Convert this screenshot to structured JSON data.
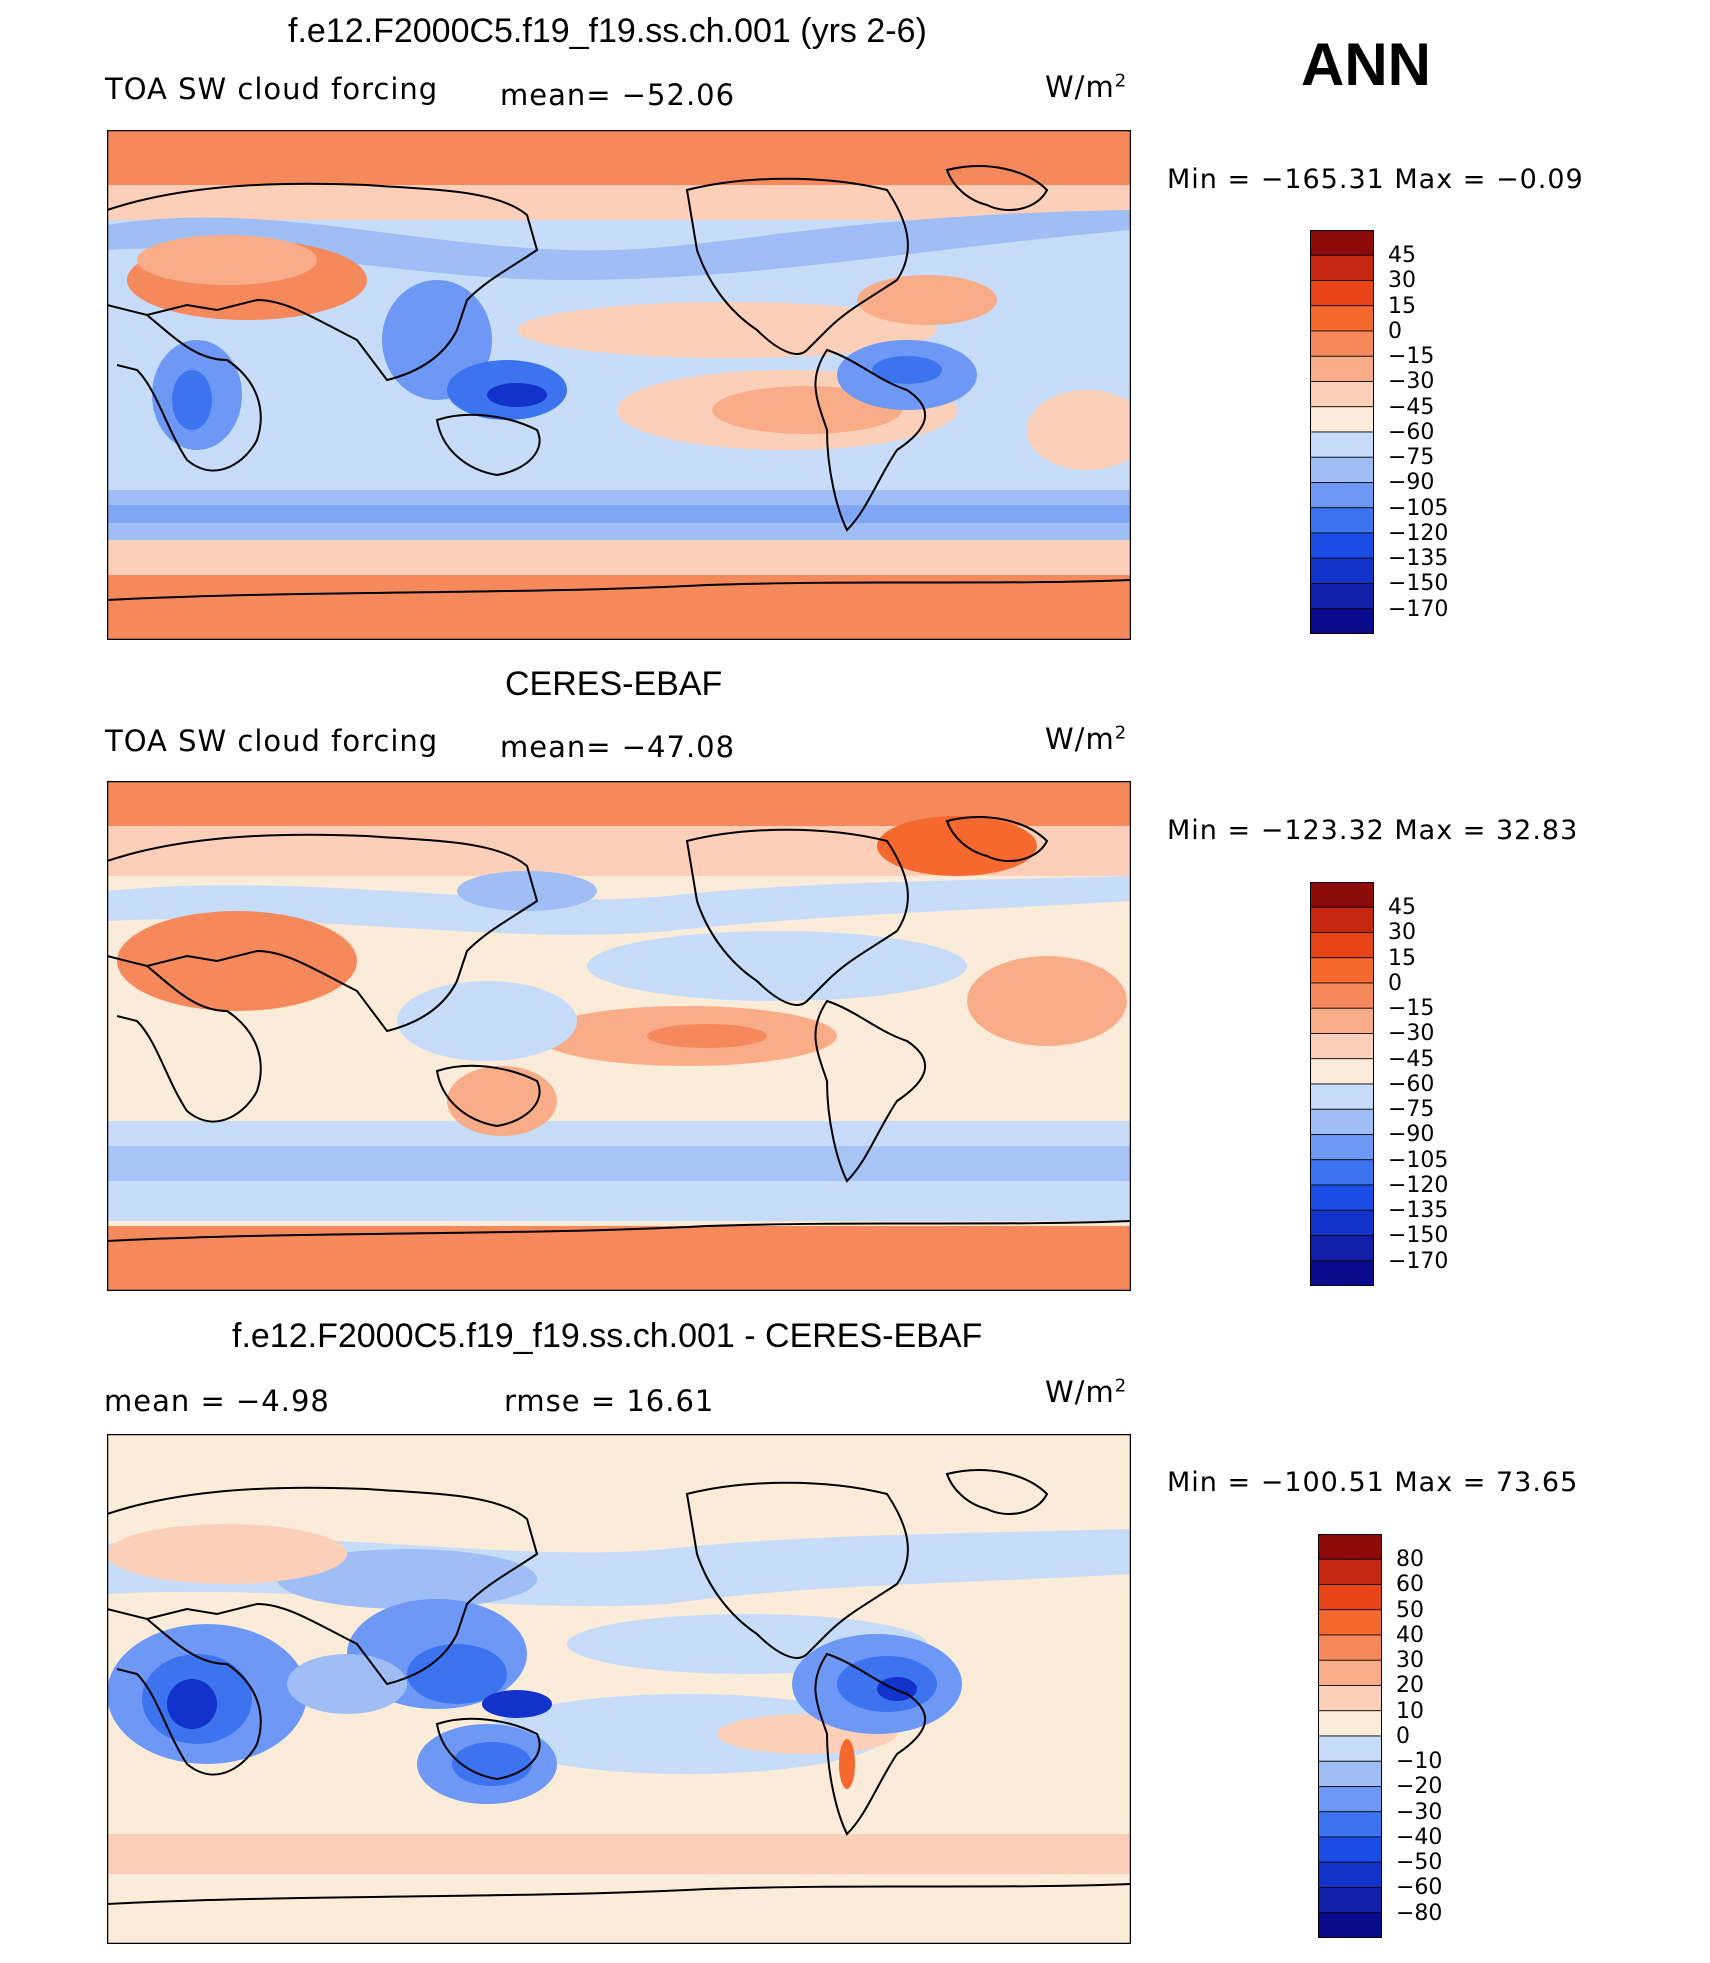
{
  "season": "ANN",
  "colors": {
    "base": [
      "#0a0a8c",
      "#0f1fa8",
      "#1232cc",
      "#1a4ee6",
      "#3c74f0",
      "#6d98f5",
      "#9ebef5",
      "#c6dcf8",
      "#fbebd9",
      "#fcd0b8",
      "#f8ad88",
      "#f5895c",
      "#f5682e",
      "#e84418",
      "#c52710",
      "#8c0a0a"
    ]
  },
  "panels": [
    {
      "title": "f.e12.F2000C5.f19_f19.ss.ch.001 (yrs 2-6)",
      "left_label": "TOA SW cloud forcing",
      "mid_label": "mean= −52.06",
      "units": "W/m",
      "units_sup": "2",
      "minmax": "Min  =  −165.31  Max  =    −0.09",
      "colorbar_labels": [
        "45",
        "30",
        "15",
        "0",
        "−15",
        "−30",
        "−45",
        "−60",
        "−75",
        "−90",
        "−105",
        "−120",
        "−135",
        "−150",
        "−170"
      ]
    },
    {
      "title": "CERES-EBAF",
      "left_label": "TOA SW cloud forcing",
      "mid_label": "mean= −47.08",
      "units": "W/m",
      "units_sup": "2",
      "minmax": "Min  =  −123.32  Max  =    32.83",
      "colorbar_labels": [
        "45",
        "30",
        "15",
        "0",
        "−15",
        "−30",
        "−45",
        "−60",
        "−75",
        "−90",
        "−105",
        "−120",
        "−135",
        "−150",
        "−170"
      ]
    },
    {
      "title": "f.e12.F2000C5.f19_f19.ss.ch.001 - CERES-EBAF",
      "left_label": "mean  =    −4.98",
      "mid_label": "rmse  =    16.61",
      "units": "W/m",
      "units_sup": "2",
      "minmax": "Min  =  −100.51  Max  =    73.65",
      "colorbar_labels": [
        "80",
        "60",
        "50",
        "40",
        "30",
        "20",
        "10",
        "0",
        "−10",
        "−20",
        "−30",
        "−40",
        "−50",
        "−60",
        "−80"
      ]
    }
  ]
}
